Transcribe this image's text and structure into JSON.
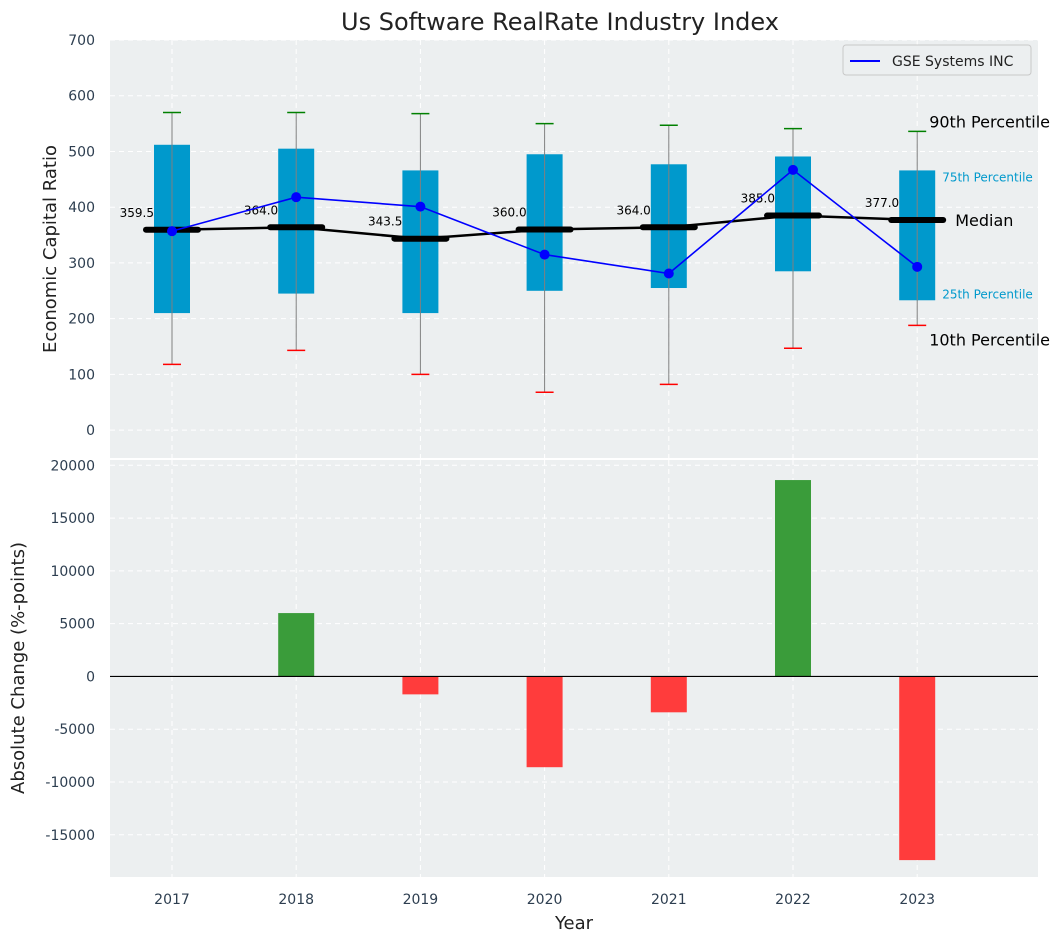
{
  "chart_data": [
    {
      "type": "box",
      "title": "Us Software RealRate Industry Index",
      "ylabel": "Economic Capital Ratio",
      "xlabel": "",
      "ylim": [
        -50,
        700
      ],
      "yticks": [
        0,
        100,
        200,
        300,
        400,
        500,
        600,
        700
      ],
      "categories": [
        "2017",
        "2018",
        "2019",
        "2020",
        "2021",
        "2022",
        "2023"
      ],
      "p10": [
        118,
        143,
        100,
        68,
        82,
        147,
        188
      ],
      "p25": [
        210,
        245,
        210,
        250,
        255,
        285,
        233
      ],
      "median": [
        359.5,
        364.0,
        343.5,
        360.0,
        364.0,
        385.0,
        377.0
      ],
      "p75": [
        512,
        505,
        466,
        495,
        477,
        491,
        466
      ],
      "p90": [
        570,
        570,
        568,
        550,
        547,
        541,
        536
      ],
      "median_labels": [
        "359.5",
        "364.0",
        "343.5",
        "360.0",
        "364.0",
        "385.0",
        "377.0"
      ],
      "series": [
        {
          "name": "GSE Systems INC",
          "values": [
            357,
            418,
            401,
            315,
            281,
            467,
            293
          ],
          "color": "#0000ff"
        }
      ],
      "annotations": {
        "p90": "90th Percentile",
        "p75": "75th Percentile",
        "median": "Median",
        "p25": "25th Percentile",
        "p10": "10th Percentile"
      },
      "colors": {
        "box": "#0099cc",
        "p90_cap": "#008000",
        "p10_cap": "#ff0000",
        "median_line": "#000000",
        "background": "#eceff0"
      },
      "grid": true,
      "legend_position": "top-right"
    },
    {
      "type": "bar",
      "title": "",
      "xlabel": "Year",
      "ylabel": "Absolute Change (%-points)",
      "ylim": [
        -19000,
        20500
      ],
      "yticks": [
        -15000,
        -10000,
        -5000,
        0,
        5000,
        10000,
        15000,
        20000
      ],
      "categories": [
        "2017",
        "2018",
        "2019",
        "2020",
        "2021",
        "2022",
        "2023"
      ],
      "values": [
        0,
        6000,
        -1700,
        -8600,
        -3400,
        18600,
        -17400
      ],
      "colors": {
        "positive": "#3a9c3a",
        "negative": "#ff3c3c",
        "zero_line": "#000000"
      },
      "grid": true
    }
  ]
}
